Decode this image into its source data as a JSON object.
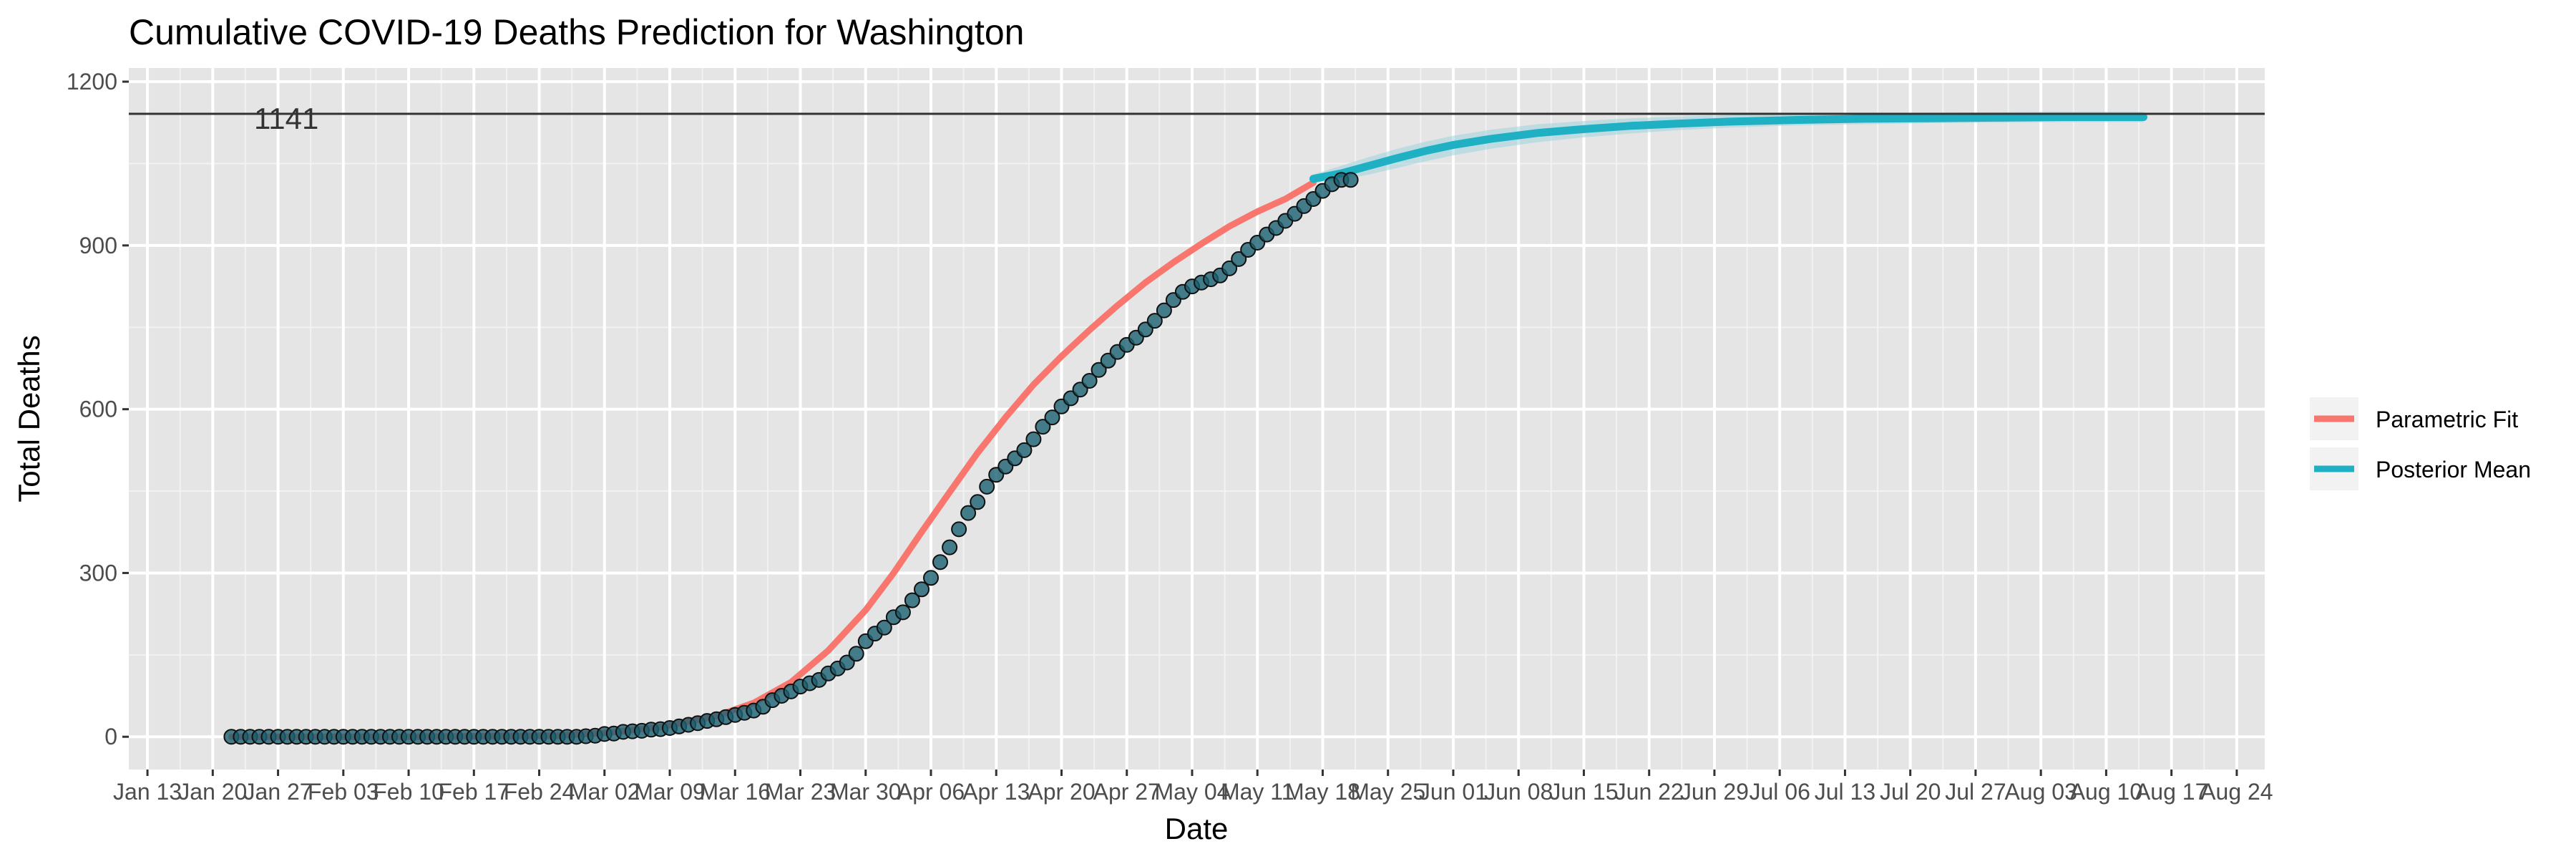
{
  "chart_data": {
    "type": "line",
    "title": "Cumulative COVID-19 Deaths Prediction for Washington",
    "xlabel": "Date",
    "ylabel": "Total Deaths",
    "xlim": [
      "2020-01-11",
      "2020-08-27"
    ],
    "ylim": [
      -60,
      1225
    ],
    "x_ticks": [
      "2020-01-13",
      "2020-01-20",
      "2020-01-27",
      "2020-02-03",
      "2020-02-10",
      "2020-02-17",
      "2020-02-24",
      "2020-03-02",
      "2020-03-09",
      "2020-03-16",
      "2020-03-23",
      "2020-03-30",
      "2020-04-06",
      "2020-04-13",
      "2020-04-20",
      "2020-04-27",
      "2020-05-04",
      "2020-05-11",
      "2020-05-18",
      "2020-05-25",
      "2020-06-01",
      "2020-06-08",
      "2020-06-15",
      "2020-06-22",
      "2020-06-29",
      "2020-07-06",
      "2020-07-13",
      "2020-07-20",
      "2020-07-27",
      "2020-08-03",
      "2020-08-10",
      "2020-08-17",
      "2020-08-24"
    ],
    "x_tick_labels": [
      "Jan 13",
      "Jan 20",
      "Jan 27",
      "Feb 03",
      "Feb 10",
      "Feb 17",
      "Feb 24",
      "Mar 02",
      "Mar 09",
      "Mar 16",
      "Mar 23",
      "Mar 30",
      "Apr 06",
      "Apr 13",
      "Apr 20",
      "Apr 27",
      "May 04",
      "May 11",
      "May 18",
      "May 25",
      "Jun 01",
      "Jun 08",
      "Jun 15",
      "Jun 22",
      "Jun 29",
      "Jul 06",
      "Jul 13",
      "Jul 20",
      "Jul 27",
      "Aug 03",
      "Aug 10",
      "Aug 17",
      "Aug 24"
    ],
    "y_ticks": [
      0,
      300,
      600,
      900,
      1200
    ],
    "y_tick_labels": [
      "0",
      "300",
      "600",
      "900",
      "1200"
    ],
    "grid": true,
    "legend_position": "right",
    "reference_line": {
      "y": 1141,
      "label": "1141",
      "color": "#333333"
    },
    "colors": {
      "parametric_fit": "#F8766D",
      "posterior_mean": "#1FB0C4",
      "band": "#9FD3E0",
      "points": "#1A6070",
      "panel": "#E5E5E5",
      "grid_major": "#FFFFFF",
      "grid_minor": "#F2F2F2"
    },
    "series": [
      {
        "name": "Parametric Fit",
        "x": [
          "2020-01-22",
          "2020-02-10",
          "2020-02-26",
          "2020-03-02",
          "2020-03-08",
          "2020-03-14",
          "2020-03-18",
          "2020-03-22",
          "2020-03-26",
          "2020-03-30",
          "2020-04-02",
          "2020-04-05",
          "2020-04-08",
          "2020-04-11",
          "2020-04-14",
          "2020-04-17",
          "2020-04-20",
          "2020-04-23",
          "2020-04-26",
          "2020-04-29",
          "2020-05-02",
          "2020-05-05",
          "2020-05-08",
          "2020-05-11",
          "2020-05-14",
          "2020-05-17"
        ],
        "values": [
          0,
          0,
          2,
          7,
          18,
          38,
          62,
          100,
          158,
          232,
          300,
          375,
          448,
          520,
          585,
          645,
          697,
          745,
          790,
          832,
          869,
          903,
          935,
          962,
          985,
          1015
        ]
      },
      {
        "name": "Posterior Mean",
        "x": [
          "2020-05-17",
          "2020-05-20",
          "2020-05-23",
          "2020-05-26",
          "2020-05-29",
          "2020-06-01",
          "2020-06-05",
          "2020-06-10",
          "2020-06-15",
          "2020-06-20",
          "2020-06-25",
          "2020-07-01",
          "2020-07-08",
          "2020-07-15",
          "2020-07-22",
          "2020-07-29",
          "2020-08-05",
          "2020-08-12",
          "2020-08-14"
        ],
        "values": [
          1022,
          1032,
          1046,
          1060,
          1073,
          1084,
          1095,
          1106,
          1113,
          1119,
          1123,
          1127,
          1130,
          1132,
          1133,
          1134,
          1135,
          1135,
          1135
        ],
        "band_low": [
          1015,
          1020,
          1030,
          1042,
          1054,
          1065,
          1077,
          1089,
          1098,
          1105,
          1111,
          1116,
          1120,
          1122,
          1124,
          1125,
          1126,
          1126,
          1126
        ],
        "band_high": [
          1030,
          1046,
          1062,
          1077,
          1090,
          1101,
          1112,
          1122,
          1128,
          1133,
          1136,
          1139,
          1141,
          1142,
          1143,
          1144,
          1145,
          1145,
          1145
        ]
      }
    ],
    "observed": {
      "start_date": "2020-01-22",
      "values": [
        0,
        0,
        0,
        0,
        0,
        0,
        0,
        0,
        0,
        0,
        0,
        0,
        0,
        0,
        0,
        0,
        0,
        0,
        0,
        0,
        0,
        0,
        0,
        0,
        0,
        0,
        0,
        0,
        0,
        0,
        0,
        0,
        0,
        0,
        0,
        0,
        0,
        0,
        1,
        2,
        5,
        6,
        9,
        10,
        11,
        13,
        14,
        16,
        19,
        22,
        25,
        29,
        32,
        36,
        40,
        44,
        48,
        55,
        67,
        75,
        83,
        92,
        98,
        104,
        116,
        125,
        136,
        152,
        175,
        189,
        200,
        219,
        228,
        250,
        270,
        291,
        320,
        347,
        380,
        410,
        430,
        458,
        480,
        495,
        510,
        525,
        545,
        568,
        585,
        605,
        620,
        636,
        652,
        672,
        689,
        705,
        718,
        731,
        746,
        762,
        781,
        800,
        815,
        825,
        832,
        838,
        845,
        858,
        875,
        892,
        905,
        920,
        932,
        945,
        958,
        972,
        985,
        1000,
        1012,
        1020,
        1020
      ]
    },
    "legend": [
      "Parametric Fit",
      "Posterior Mean"
    ]
  }
}
